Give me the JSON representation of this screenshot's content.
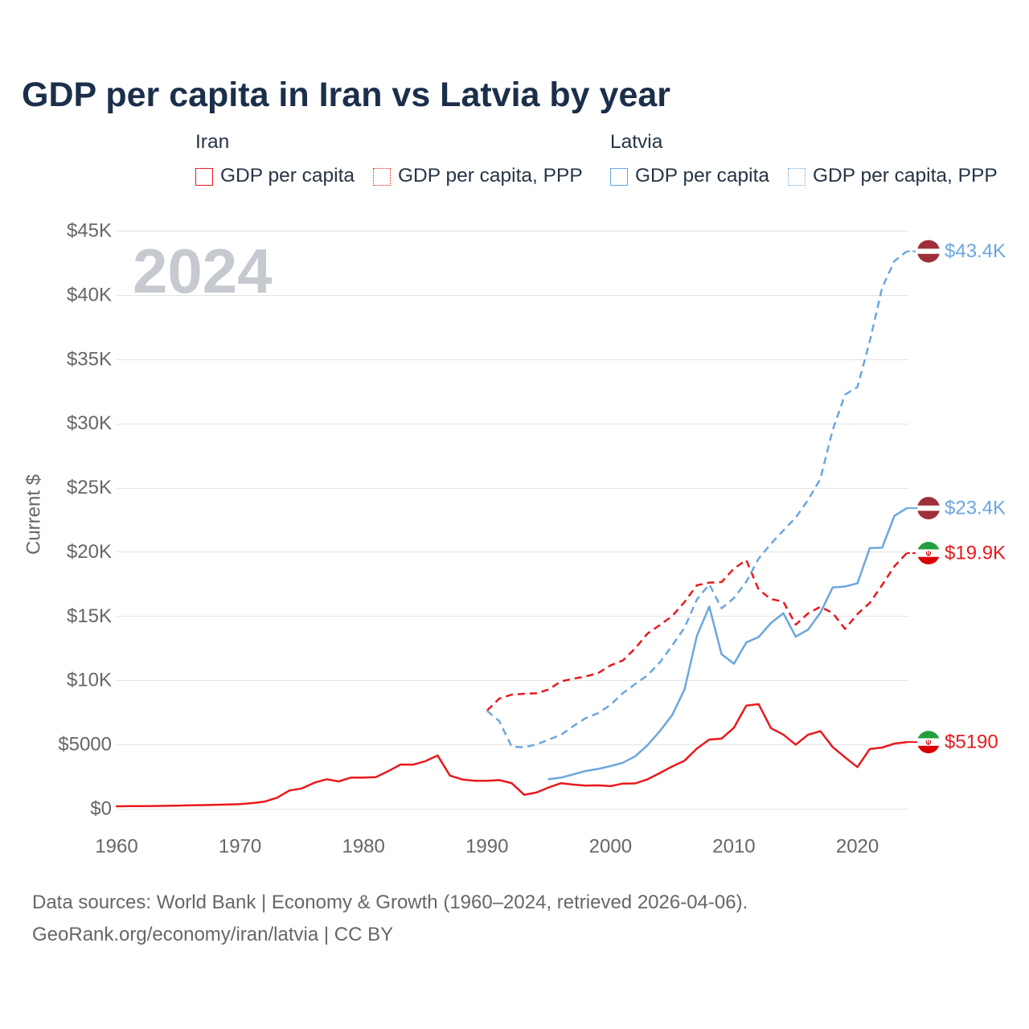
{
  "chart_data": {
    "type": "line",
    "title": "GDP per capita in Iran vs Latvia by year",
    "ylabel": "Current $",
    "year_label": "2024",
    "x": {
      "min": 1960,
      "max": 2024,
      "ticks": [
        1960,
        1970,
        1980,
        1990,
        2000,
        2010,
        2020
      ],
      "tick_labels": [
        "1960",
        "1970",
        "1980",
        "1990",
        "2000",
        "2010",
        "2020"
      ]
    },
    "y": {
      "min": 0,
      "max": 45000,
      "grid": true,
      "ticks": [
        0,
        5000,
        10000,
        15000,
        20000,
        25000,
        30000,
        35000,
        40000,
        45000
      ],
      "tick_labels": [
        "$0",
        "$5000",
        "$10K",
        "$15K",
        "$20K",
        "$25K",
        "$30K",
        "$35K",
        "$40K",
        "$45K"
      ]
    },
    "groups": [
      {
        "country": "Iran",
        "flag_icon": "iran-flag-icon",
        "flag_colors": {
          "green": "#239f40",
          "white": "#ffffff",
          "red": "#da0000"
        },
        "series": [
          {
            "name": "GDP per capita",
            "color": "#e8191d",
            "dashed": false,
            "start_year": 1960,
            "values": [
              190,
              200,
              205,
              210,
              225,
              245,
              260,
              280,
              305,
              330,
              360,
              440,
              560,
              860,
              1420,
              1580,
              2020,
              2290,
              2130,
              2430,
              2420,
              2460,
              2920,
              3440,
              3430,
              3700,
              4150,
              2580,
              2280,
              2180,
              2170,
              2230,
              1990,
              1090,
              1260,
              1660,
              1990,
              1880,
              1800,
              1820,
              1760,
              1960,
              1970,
              2290,
              2780,
              3290,
              3740,
              4690,
              5380,
              5460,
              6310,
              8030,
              8140,
              6270,
              5770,
              4990,
              5760,
              6040,
              4800,
              4000,
              3240,
              4650,
              4760,
              5070,
              5190
            ],
            "end_label": "$5190"
          },
          {
            "name": "GDP per capita, PPP",
            "color": "#e8191d",
            "dashed": true,
            "start_year": 1990,
            "values": [
              7640,
              8580,
              8880,
              8950,
              8990,
              9280,
              9920,
              10120,
              10300,
              10560,
              11160,
              11540,
              12480,
              13640,
              14300,
              15000,
              16100,
              17400,
              17600,
              17650,
              18700,
              19360,
              17060,
              16320,
              16120,
              14330,
              15200,
              15720,
              15240,
              14000,
              15160,
              16020,
              17420,
              18880,
              19900
            ],
            "end_label": "$19.9K"
          }
        ]
      },
      {
        "country": "Latvia",
        "flag_icon": "latvia-flag-icon",
        "flag_colors": {
          "red": "#9e3039",
          "white": "#ffffff"
        },
        "series": [
          {
            "name": "GDP per capita",
            "color": "#6aa7de",
            "dashed": false,
            "start_year": 1995,
            "values": [
              2300,
              2420,
              2680,
              2940,
              3100,
              3320,
              3580,
              4080,
              4950,
              6040,
              7300,
              9290,
              13460,
              15740,
              12020,
              11290,
              12940,
              13370,
              14460,
              15220,
              13400,
              13940,
              15260,
              17230,
              17300,
              17550,
              20290,
              20320,
              22800,
              23400
            ],
            "end_label": "$23.4K"
          },
          {
            "name": "GDP per capita, PPP",
            "color": "#6aa7de",
            "dashed": true,
            "start_year": 1990,
            "values": [
              7620,
              6820,
              4830,
              4780,
              5000,
              5380,
              5750,
              6440,
              7060,
              7440,
              8080,
              9000,
              9710,
              10390,
              11390,
              12700,
              14100,
              16300,
              17470,
              15600,
              16400,
              17660,
              19480,
              20620,
              21660,
              22660,
              24040,
              25680,
              29500,
              32240,
              32830,
              36380,
              40560,
              42640,
              43400
            ],
            "end_label": "$43.4K"
          }
        ]
      }
    ]
  },
  "footer": {
    "source": "Data sources: World Bank | Economy & Growth (1960–2024, retrieved 2026-04-06).",
    "credit": "GeoRank.org/economy/iran/latvia | CC BY"
  }
}
